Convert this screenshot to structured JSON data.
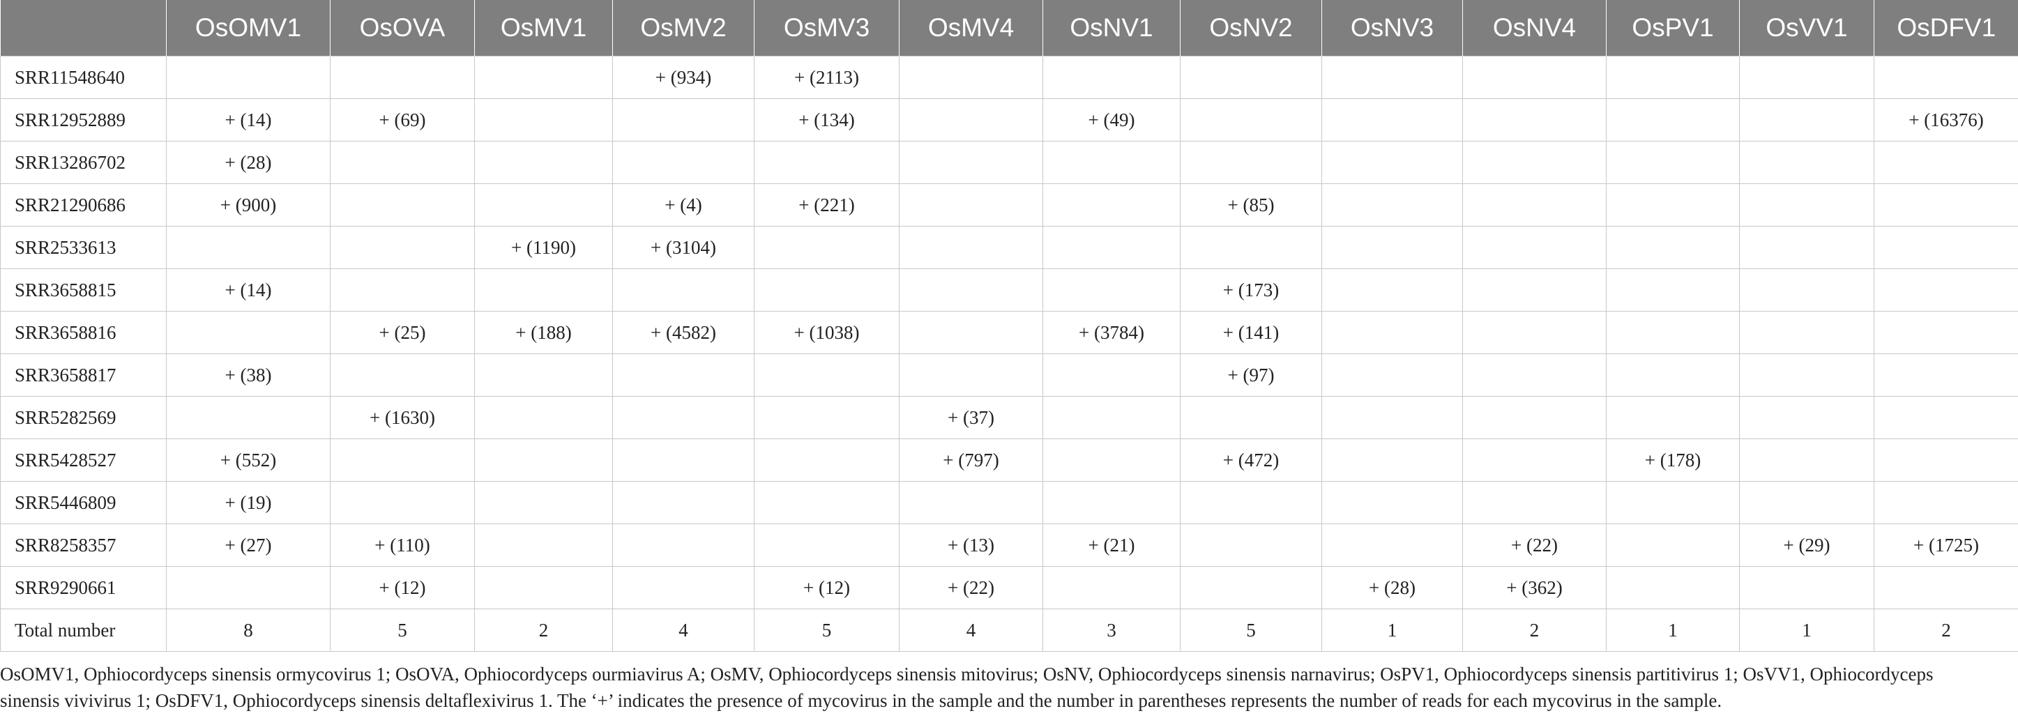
{
  "header": {
    "columns": [
      "",
      "OsOMV1",
      "OsOVA",
      "OsMV1",
      "OsMV2",
      "OsMV3",
      "OsMV4",
      "OsNV1",
      "OsNV2",
      "OsNV3",
      "OsNV4",
      "OsPV1",
      "OsVV1",
      "OsDFV1"
    ]
  },
  "rows": [
    {
      "name": "SRR11548640",
      "cells": [
        "",
        "",
        "",
        "+ (934)",
        "+ (2113)",
        "",
        "",
        "",
        "",
        "",
        "",
        "",
        ""
      ]
    },
    {
      "name": "SRR12952889",
      "cells": [
        "+ (14)",
        "+ (69)",
        "",
        "",
        "+ (134)",
        "",
        "+ (49)",
        "",
        "",
        "",
        "",
        "",
        "+ (16376)"
      ]
    },
    {
      "name": "SRR13286702",
      "cells": [
        "+ (28)",
        "",
        "",
        "",
        "",
        "",
        "",
        "",
        "",
        "",
        "",
        "",
        ""
      ]
    },
    {
      "name": "SRR21290686",
      "cells": [
        "+ (900)",
        "",
        "",
        "+ (4)",
        "+ (221)",
        "",
        "",
        "+ (85)",
        "",
        "",
        "",
        "",
        ""
      ]
    },
    {
      "name": "SRR2533613",
      "cells": [
        "",
        "",
        "+ (1190)",
        "+ (3104)",
        "",
        "",
        "",
        "",
        "",
        "",
        "",
        "",
        ""
      ]
    },
    {
      "name": "SRR3658815",
      "cells": [
        "+ (14)",
        "",
        "",
        "",
        "",
        "",
        "",
        "+ (173)",
        "",
        "",
        "",
        "",
        ""
      ]
    },
    {
      "name": "SRR3658816",
      "cells": [
        "",
        "+ (25)",
        "+ (188)",
        "+ (4582)",
        "+ (1038)",
        "",
        "+ (3784)",
        "+ (141)",
        "",
        "",
        "",
        "",
        ""
      ]
    },
    {
      "name": "SRR3658817",
      "cells": [
        "+ (38)",
        "",
        "",
        "",
        "",
        "",
        "",
        "+ (97)",
        "",
        "",
        "",
        "",
        ""
      ]
    },
    {
      "name": "SRR5282569",
      "cells": [
        "",
        "+ (1630)",
        "",
        "",
        "",
        "+ (37)",
        "",
        "",
        "",
        "",
        "",
        "",
        ""
      ]
    },
    {
      "name": "SRR5428527",
      "cells": [
        "+ (552)",
        "",
        "",
        "",
        "",
        "+ (797)",
        "",
        "+ (472)",
        "",
        "",
        "+ (178)",
        "",
        ""
      ]
    },
    {
      "name": "SRR5446809",
      "cells": [
        "+ (19)",
        "",
        "",
        "",
        "",
        "",
        "",
        "",
        "",
        "",
        "",
        "",
        ""
      ]
    },
    {
      "name": "SRR8258357",
      "cells": [
        "+ (27)",
        "+ (110)",
        "",
        "",
        "",
        "+ (13)",
        "+ (21)",
        "",
        "",
        "+ (22)",
        "",
        "+ (29)",
        "+ (1725)"
      ]
    },
    {
      "name": "SRR9290661",
      "cells": [
        "",
        "+ (12)",
        "",
        "",
        "+ (12)",
        "+ (22)",
        "",
        "",
        "+ (28)",
        "+ (362)",
        "",
        "",
        ""
      ]
    },
    {
      "name": "Total number",
      "cells": [
        "8",
        "5",
        "2",
        "4",
        "5",
        "4",
        "3",
        "5",
        "1",
        "2",
        "1",
        "1",
        "2"
      ]
    }
  ],
  "caption": "OsOMV1, Ophiocordyceps sinensis ormycovirus 1; OsOVA, Ophiocordyceps ourmiavirus A; OsMV, Ophiocordyceps sinensis mitovirus; OsNV, Ophiocordyceps sinensis narnavirus; OsPV1, Ophiocordyceps sinensis partitivirus 1; OsVV1, Ophiocordyceps sinensis vivivirus 1; OsDFV1, Ophiocordyceps sinensis deltaflexivirus 1. The ‘+’ indicates the presence of mycovirus in the sample and the number in parentheses represents the number of reads for each mycovirus in the sample."
}
